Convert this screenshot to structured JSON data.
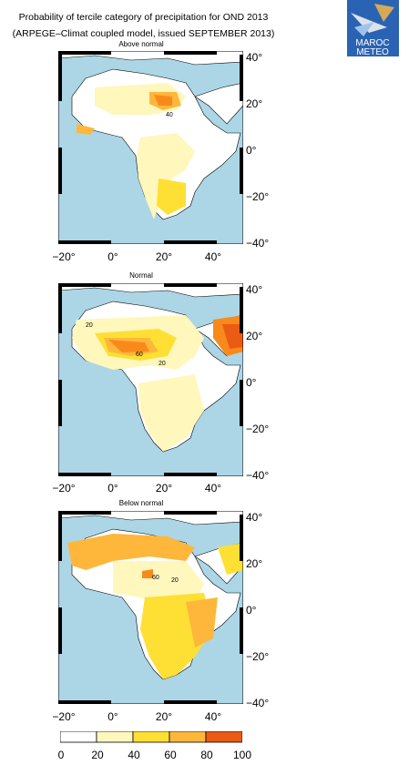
{
  "title_line1": "Probability of tercile category of precipitation for OND 2013",
  "title_line2": "(ARPEGE–Climat coupled model, issued SEPTEMBER 2013)",
  "logo": {
    "text_line1": "MAROC",
    "text_line2": "METEO"
  },
  "panels": [
    {
      "name": "above-normal",
      "title": "Above normal",
      "contour_labels": [
        "40"
      ]
    },
    {
      "name": "normal",
      "title": "Normal",
      "contour_labels": [
        "20",
        "60",
        "20"
      ]
    },
    {
      "name": "below-normal",
      "title": "Below normal",
      "contour_labels": [
        "60",
        "20"
      ]
    }
  ],
  "lat_labels": [
    "40°",
    "20°",
    "0°",
    "−20°",
    "−40°"
  ],
  "lon_labels": [
    "−20°",
    "0°",
    "20°",
    "40°"
  ],
  "legend": {
    "ticks": [
      "0",
      "20",
      "40",
      "60",
      "80",
      "100"
    ],
    "colors": [
      "#ffffff",
      "#fff7bc",
      "#fee034",
      "#feb73a",
      "#f88a1c",
      "#ea5b14"
    ]
  },
  "map_colors": {
    "ocean": "#acd6e6",
    "land": "#ffffff"
  }
}
